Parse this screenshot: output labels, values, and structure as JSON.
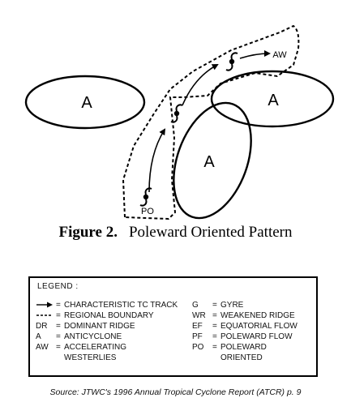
{
  "diagram": {
    "labels": {
      "anticyclone_west": "A",
      "anticyclone_east": "A",
      "anticyclone_center": "A",
      "accelerating_westerlies": "AW",
      "poleward_oriented": "PO"
    }
  },
  "caption": {
    "figure_label": "Figure 2.",
    "title": "Poleward Oriented Pattern"
  },
  "legend": {
    "title": "LEGEND :",
    "left_entries": [
      {
        "symbol": "track-arrow",
        "eq": "=",
        "definition": "CHARACTERISTIC TC TRACK"
      },
      {
        "symbol": "dashed-boundary",
        "eq": "=",
        "definition": "REGIONAL BOUNDARY"
      },
      {
        "symbol": "DR",
        "eq": "=",
        "definition": "DOMINANT RIDGE"
      },
      {
        "symbol": "A",
        "eq": "=",
        "definition": "ANTICYCLONE"
      },
      {
        "symbol": "AW",
        "eq": "=",
        "definition": "ACCELERATING"
      },
      {
        "symbol": "",
        "eq": "",
        "definition": "WESTERLIES"
      }
    ],
    "right_entries": [
      {
        "symbol": "G",
        "eq": "=",
        "definition": "GYRE"
      },
      {
        "symbol": "WR",
        "eq": "=",
        "definition": "WEAKENED RIDGE"
      },
      {
        "symbol": "EF",
        "eq": "=",
        "definition": "EQUATORIAL FLOW"
      },
      {
        "symbol": "PF",
        "eq": "=",
        "definition": "POLEWARD FLOW"
      },
      {
        "symbol": "PO",
        "eq": "=",
        "definition": "POLEWARD"
      },
      {
        "symbol": "",
        "eq": "",
        "definition": "ORIENTED"
      }
    ]
  },
  "source": "Source: JTWC's 1996 Annual Tropical Cyclone Report (ATCR) p. 9"
}
